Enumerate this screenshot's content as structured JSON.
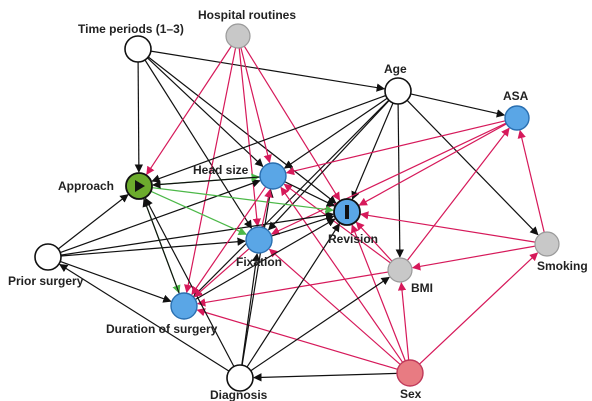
{
  "colors": {
    "black_edge": "#111111",
    "crimson_edge": "#d6195a",
    "green_edge": "#4cb848",
    "node_white": "#ffffff",
    "node_gray": "#c8c8c8",
    "node_blue": "#5aa6e6",
    "node_green": "#6cab2d",
    "node_pink": "#e87b82",
    "node_stroke": "#111111"
  },
  "nodes": {
    "time_periods": {
      "label": "Time periods (1–3)",
      "style": "white"
    },
    "hospital_routines": {
      "label": "Hospital routines",
      "style": "gray"
    },
    "age": {
      "label": "Age",
      "style": "white"
    },
    "asa": {
      "label": "ASA",
      "style": "blue"
    },
    "approach": {
      "label": "Approach",
      "style": "exposure",
      "icon": "play-triangle-icon"
    },
    "head_size": {
      "label": "Head size",
      "style": "blue"
    },
    "revision": {
      "label": "Revision",
      "style": "outcome",
      "icon": "vertical-bar-icon"
    },
    "fixation": {
      "label": "Fixation",
      "style": "blue"
    },
    "smoking": {
      "label": "Smoking",
      "style": "gray"
    },
    "prior_surgery": {
      "label": "Prior surgery",
      "style": "white"
    },
    "bmi": {
      "label": "BMI",
      "style": "gray"
    },
    "duration": {
      "label": "Duration of surgery",
      "style": "blue"
    },
    "diagnosis": {
      "label": "Diagnosis",
      "style": "white"
    },
    "sex": {
      "label": "Sex",
      "style": "pink"
    }
  },
  "edges": [
    {
      "from": "time_periods",
      "to": "approach",
      "kind": "black"
    },
    {
      "from": "time_periods",
      "to": "head_size",
      "kind": "black"
    },
    {
      "from": "time_periods",
      "to": "revision",
      "kind": "black"
    },
    {
      "from": "time_periods",
      "to": "fixation",
      "kind": "black"
    },
    {
      "from": "time_periods",
      "to": "age",
      "kind": "black"
    },
    {
      "from": "hospital_routines",
      "to": "approach",
      "kind": "crimson"
    },
    {
      "from": "hospital_routines",
      "to": "head_size",
      "kind": "crimson"
    },
    {
      "from": "hospital_routines",
      "to": "revision",
      "kind": "crimson"
    },
    {
      "from": "hospital_routines",
      "to": "fixation",
      "kind": "crimson"
    },
    {
      "from": "hospital_routines",
      "to": "duration",
      "kind": "crimson"
    },
    {
      "from": "age",
      "to": "asa",
      "kind": "black"
    },
    {
      "from": "age",
      "to": "smoking",
      "kind": "black"
    },
    {
      "from": "age",
      "to": "bmi",
      "kind": "black"
    },
    {
      "from": "age",
      "to": "approach",
      "kind": "black"
    },
    {
      "from": "age",
      "to": "head_size",
      "kind": "black"
    },
    {
      "from": "age",
      "to": "revision",
      "kind": "black"
    },
    {
      "from": "age",
      "to": "fixation",
      "kind": "black"
    },
    {
      "from": "age",
      "to": "duration",
      "kind": "black"
    },
    {
      "from": "asa",
      "to": "head_size",
      "kind": "crimson"
    },
    {
      "from": "asa",
      "to": "revision",
      "kind": "crimson"
    },
    {
      "from": "asa",
      "to": "fixation",
      "kind": "crimson"
    },
    {
      "from": "smoking",
      "to": "asa",
      "kind": "crimson"
    },
    {
      "from": "smoking",
      "to": "revision",
      "kind": "crimson"
    },
    {
      "from": "smoking",
      "to": "bmi",
      "kind": "crimson"
    },
    {
      "from": "bmi",
      "to": "asa",
      "kind": "crimson"
    },
    {
      "from": "bmi",
      "to": "revision",
      "kind": "crimson"
    },
    {
      "from": "bmi",
      "to": "duration",
      "kind": "crimson"
    },
    {
      "from": "bmi",
      "to": "head_size",
      "kind": "crimson"
    },
    {
      "from": "sex",
      "to": "bmi",
      "kind": "crimson"
    },
    {
      "from": "sex",
      "to": "smoking",
      "kind": "crimson"
    },
    {
      "from": "sex",
      "to": "revision",
      "kind": "crimson"
    },
    {
      "from": "sex",
      "to": "fixation",
      "kind": "crimson"
    },
    {
      "from": "sex",
      "to": "head_size",
      "kind": "crimson"
    },
    {
      "from": "sex",
      "to": "duration",
      "kind": "crimson"
    },
    {
      "from": "sex",
      "to": "diagnosis",
      "kind": "black"
    },
    {
      "from": "diagnosis",
      "to": "approach",
      "kind": "black"
    },
    {
      "from": "diagnosis",
      "to": "head_size",
      "kind": "black"
    },
    {
      "from": "diagnosis",
      "to": "revision",
      "kind": "black"
    },
    {
      "from": "diagnosis",
      "to": "fixation",
      "kind": "black"
    },
    {
      "from": "diagnosis",
      "to": "bmi",
      "kind": "black"
    },
    {
      "from": "diagnosis",
      "to": "prior_surgery",
      "kind": "black"
    },
    {
      "from": "prior_surgery",
      "to": "approach",
      "kind": "black"
    },
    {
      "from": "prior_surgery",
      "to": "head_size",
      "kind": "black"
    },
    {
      "from": "prior_surgery",
      "to": "revision",
      "kind": "black"
    },
    {
      "from": "prior_surgery",
      "to": "fixation",
      "kind": "black"
    },
    {
      "from": "prior_surgery",
      "to": "duration",
      "kind": "black"
    },
    {
      "from": "approach",
      "to": "head_size",
      "kind": "green"
    },
    {
      "from": "approach",
      "to": "revision",
      "kind": "green"
    },
    {
      "from": "approach",
      "to": "fixation",
      "kind": "green"
    },
    {
      "from": "approach",
      "to": "duration",
      "kind": "green"
    },
    {
      "from": "head_size",
      "to": "revision",
      "kind": "black"
    },
    {
      "from": "head_size",
      "to": "approach",
      "kind": "black"
    },
    {
      "from": "fixation",
      "to": "revision",
      "kind": "black"
    },
    {
      "from": "fixation",
      "to": "head_size",
      "kind": "crimson"
    },
    {
      "from": "duration",
      "to": "revision",
      "kind": "black"
    },
    {
      "from": "duration",
      "to": "approach",
      "kind": "black"
    },
    {
      "from": "head_size",
      "to": "duration",
      "kind": "crimson"
    },
    {
      "from": "fixation",
      "to": "duration",
      "kind": "crimson"
    }
  ]
}
